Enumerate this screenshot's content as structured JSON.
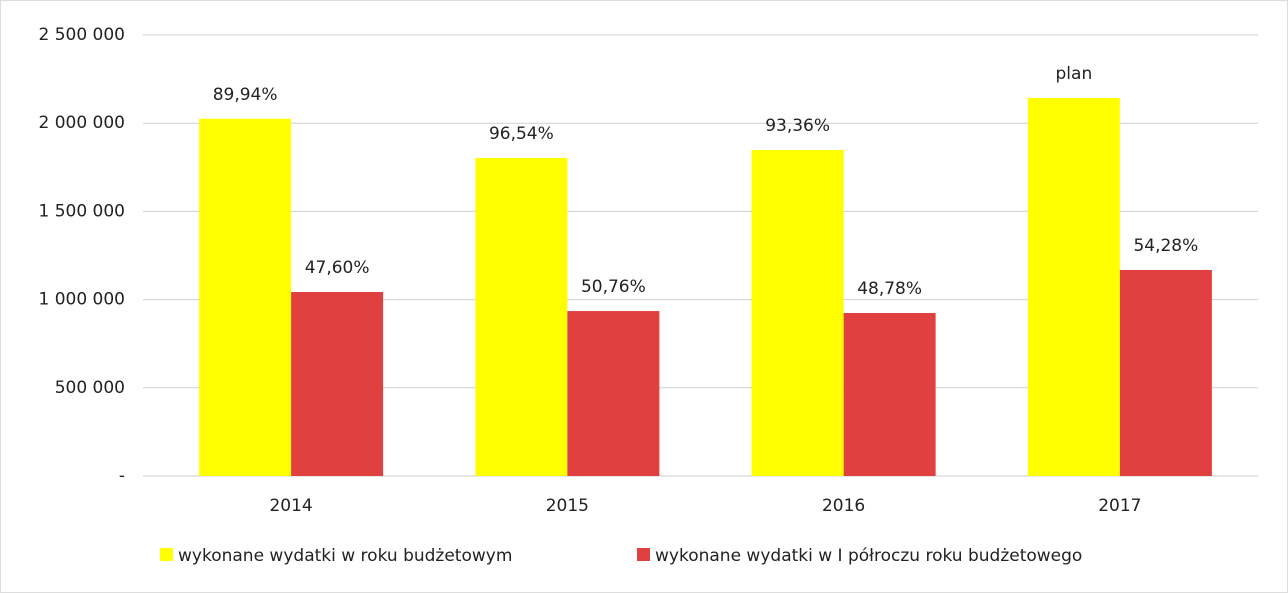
{
  "chart_data": {
    "type": "bar",
    "categories": [
      "2014",
      "2015",
      "2016",
      "2017"
    ],
    "series": [
      {
        "name": "wykonane wydatki w roku budżetowym",
        "color": "#ffff00",
        "values": [
          2025000,
          1803000,
          1848000,
          2143000
        ],
        "bar_labels": [
          "89,94%",
          "96,54%",
          "93,36%",
          "plan"
        ]
      },
      {
        "name": "wykonane wydatki w I półroczu roku budżetowego",
        "color": "#e04040",
        "values": [
          1043000,
          935000,
          924000,
          1168000
        ],
        "bar_labels": [
          "47,60%",
          "50,76%",
          "48,78%",
          "54,28%"
        ]
      }
    ],
    "ylim": [
      0,
      2500000
    ],
    "yticks": [
      {
        "value": 0,
        "label": "-"
      },
      {
        "value": 500000,
        "label": "500 000"
      },
      {
        "value": 1000000,
        "label": "1 000 000"
      },
      {
        "value": 1500000,
        "label": "1 500 000"
      },
      {
        "value": 2000000,
        "label": "2 000 000"
      },
      {
        "value": 2500000,
        "label": "2 500 000"
      }
    ],
    "grid": true,
    "legend": "bottom"
  }
}
